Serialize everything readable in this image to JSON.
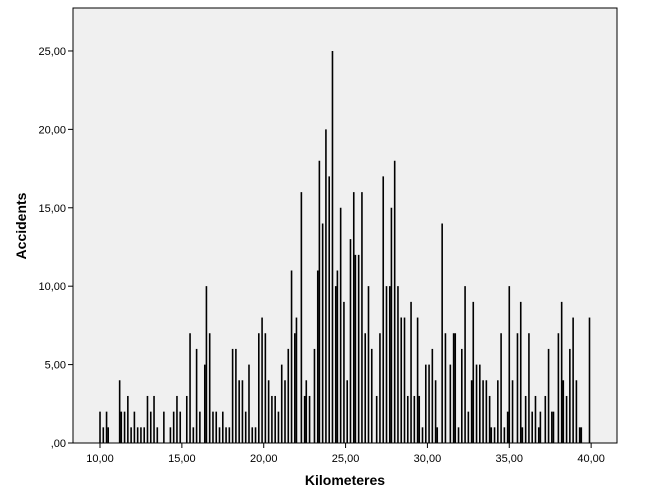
{
  "chart_data": {
    "type": "bar",
    "x_label": "Kilometeres",
    "y_label": "Accidents",
    "x": [
      10.0,
      10.2,
      10.4,
      10.5,
      11.2,
      11.3,
      11.5,
      11.7,
      11.9,
      12.1,
      12.3,
      12.5,
      12.7,
      12.9,
      13.1,
      13.3,
      13.5,
      13.9,
      14.3,
      14.5,
      14.7,
      14.9,
      15.3,
      15.5,
      15.7,
      15.9,
      16.1,
      16.4,
      16.5,
      16.7,
      16.9,
      17.1,
      17.3,
      17.5,
      17.7,
      17.9,
      18.1,
      18.3,
      18.5,
      18.7,
      18.9,
      19.1,
      19.3,
      19.5,
      19.7,
      19.9,
      20.1,
      20.3,
      20.5,
      20.7,
      20.9,
      21.1,
      21.3,
      21.5,
      21.7,
      21.9,
      22.0,
      22.3,
      22.5,
      22.6,
      22.8,
      23.1,
      23.3,
      23.4,
      23.6,
      23.8,
      24.0,
      24.2,
      24.4,
      24.5,
      24.7,
      24.9,
      25.1,
      25.3,
      25.5,
      25.6,
      25.8,
      26.0,
      26.2,
      26.4,
      26.6,
      26.9,
      27.1,
      27.3,
      27.5,
      27.7,
      27.8,
      28.0,
      28.2,
      28.4,
      28.6,
      28.8,
      29.0,
      29.2,
      29.4,
      29.5,
      29.7,
      29.9,
      30.1,
      30.3,
      30.5,
      30.6,
      30.9,
      31.1,
      31.4,
      31.6,
      31.7,
      31.9,
      32.1,
      32.3,
      32.5,
      32.7,
      32.8,
      33.0,
      33.2,
      33.4,
      33.6,
      33.8,
      33.9,
      34.1,
      34.3,
      34.5,
      34.7,
      34.9,
      35.0,
      35.2,
      35.5,
      35.7,
      35.8,
      36.0,
      36.2,
      36.4,
      36.6,
      36.8,
      36.9,
      37.2,
      37.4,
      37.6,
      37.7,
      38.0,
      38.2,
      38.3,
      38.5,
      38.7,
      38.9,
      39.1,
      39.3,
      39.4,
      39.9
    ],
    "values": [
      2,
      1,
      2,
      1,
      4,
      2,
      2,
      3,
      1,
      2,
      1,
      1,
      1,
      3,
      2,
      3,
      1,
      2,
      1,
      2,
      3,
      2,
      3,
      7,
      1,
      6,
      2,
      5,
      10,
      7,
      2,
      2,
      1,
      2,
      1,
      1,
      6,
      6,
      4,
      4,
      2,
      5,
      1,
      1,
      7,
      8,
      7,
      4,
      3,
      3,
      2,
      5,
      4,
      6,
      11,
      7,
      8,
      16,
      3,
      4,
      3,
      6,
      11,
      18,
      14,
      20,
      17,
      25,
      10,
      11,
      15,
      9,
      4,
      13,
      16,
      12,
      12,
      16,
      7,
      10,
      6,
      3,
      7,
      17,
      10,
      10,
      15,
      18,
      10,
      8,
      8,
      3,
      9,
      3,
      8,
      3,
      1,
      5,
      5,
      6,
      4,
      1,
      14,
      7,
      5,
      7,
      7,
      1,
      6,
      10,
      2,
      4,
      9,
      5,
      5,
      4,
      4,
      3,
      1,
      1,
      4,
      7,
      1,
      2,
      10,
      4,
      7,
      9,
      1,
      3,
      7,
      2,
      3,
      1,
      2,
      3,
      6,
      2,
      2,
      7,
      9,
      4,
      3,
      6,
      8,
      4,
      1,
      1,
      8
    ],
    "color": "#000000",
    "xlim": [
      8.35,
      41.58
    ],
    "xticks": [
      {
        "value": 10,
        "label": "10,00"
      },
      {
        "value": 15,
        "label": "15,00"
      },
      {
        "value": 20,
        "label": "20,00"
      },
      {
        "value": 25,
        "label": "25,00"
      },
      {
        "value": 30,
        "label": "30,00"
      },
      {
        "value": 35,
        "label": "35,00"
      },
      {
        "value": 40,
        "label": "40,00"
      }
    ],
    "ylim": [
      0,
      27.74
    ],
    "yticks": [
      {
        "value": 0,
        "label": ",00"
      },
      {
        "value": 5,
        "label": "5,00"
      },
      {
        "value": 10,
        "label": "10,00"
      },
      {
        "value": 15,
        "label": "15,00"
      },
      {
        "value": 20,
        "label": "20,00"
      },
      {
        "value": 25,
        "label": "25,00"
      }
    ]
  }
}
